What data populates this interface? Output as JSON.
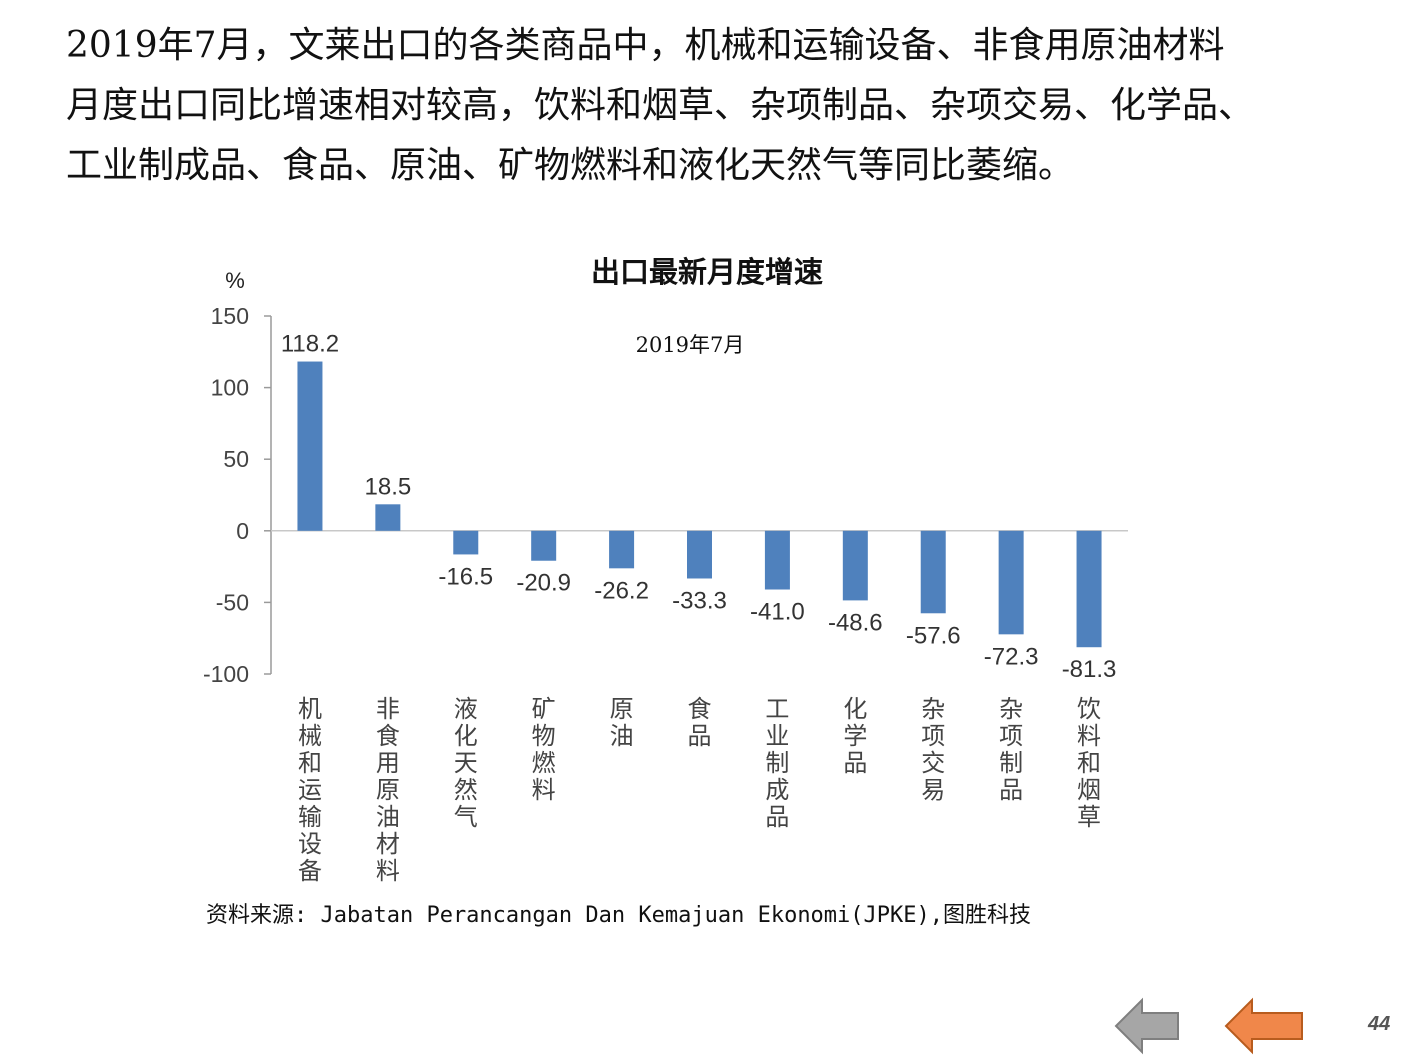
{
  "paragraph": {
    "lines": [
      "2019年7月，文莱出口的各类商品中，机械和运输设备、非食用原油材料",
      "月度出口同比增速相对较高，饮料和烟草、杂项制品、杂项交易、化学品、",
      "工业制成品、食品、原油、矿物燃料和液化天然气等同比萎缩。"
    ]
  },
  "chart_data": {
    "type": "bar",
    "title": "出口最新月度增速",
    "subtitle": "2019年7月",
    "ylabel": "%",
    "ylim": [
      -100,
      150
    ],
    "yticks": [
      "150",
      "100",
      "50",
      "0",
      "-50",
      "-100"
    ],
    "grid": false,
    "bar_color": "#4f81bd",
    "categories": [
      "机械和运输设备",
      "非食用原油材料",
      "液化天然气",
      "矿物燃料",
      "原油",
      "食品",
      "工业制成品",
      "化学品",
      "杂项交易",
      "杂项制品",
      "饮料和烟草"
    ],
    "values": [
      118.2,
      18.5,
      -16.5,
      -20.9,
      -26.2,
      -33.3,
      -41.0,
      -48.6,
      -57.6,
      -72.3,
      -81.3
    ],
    "data_labels": [
      "118.2",
      "18.5",
      "-16.5",
      "-20.9",
      "-26.2",
      "-33.3",
      "-41.0",
      "-48.6",
      "-57.6",
      "-72.3",
      "-81.3"
    ]
  },
  "source": "资料来源: Jabatan Perancangan Dan Kemajuan Ekonomi(JPKE),图胜科技",
  "navigation": {
    "back_color": "#a6a6a6",
    "forward_color": "#f0874a",
    "page_number": "44"
  }
}
